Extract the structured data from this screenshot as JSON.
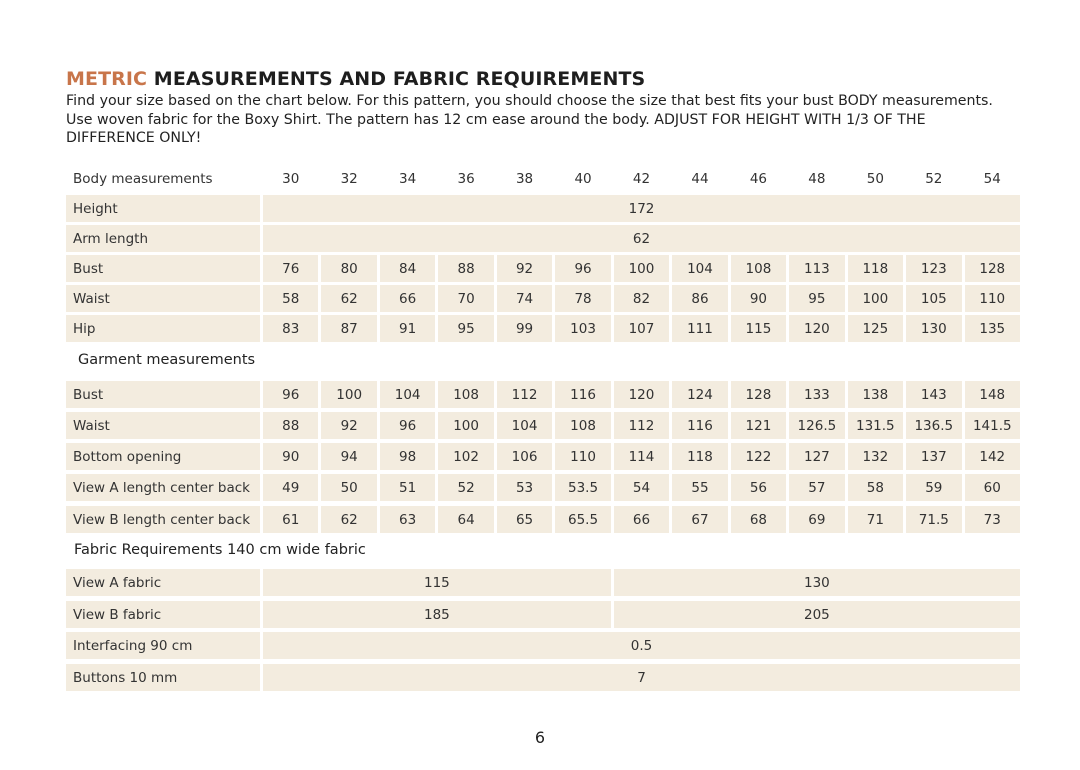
{
  "title": {
    "accent": "METRIC",
    "rest": " MEASUREMENTS AND FABRIC REQUIREMENTS"
  },
  "intro": "Find your size based on the chart below. For this pattern, you should choose the size that best fits your bust BODY measurements. Use woven fabric for the Boxy Shirt. The pattern has 12 cm ease around the body. ADJUST FOR HEIGHT WITH 1/3 OF THE DIFFERENCE ONLY!",
  "colors": {
    "accent": "#c8754a",
    "cell_bg": "#f3ecdf"
  },
  "body": {
    "heading": "Body measurements",
    "sizes": [
      "30",
      "32",
      "34",
      "36",
      "38",
      "40",
      "42",
      "44",
      "46",
      "48",
      "50",
      "52",
      "54"
    ],
    "rows": [
      {
        "label": "Height",
        "spans": [
          {
            "value": "172",
            "cols": 13
          }
        ]
      },
      {
        "label": "Arm length",
        "spans": [
          {
            "value": "62",
            "cols": 13
          }
        ]
      },
      {
        "label": "Bust",
        "values": [
          "76",
          "80",
          "84",
          "88",
          "92",
          "96",
          "100",
          "104",
          "108",
          "113",
          "118",
          "123",
          "128"
        ]
      },
      {
        "label": "Waist",
        "values": [
          "58",
          "62",
          "66",
          "70",
          "74",
          "78",
          "82",
          "86",
          "90",
          "95",
          "100",
          "105",
          "110"
        ]
      },
      {
        "label": "Hip",
        "values": [
          "83",
          "87",
          "91",
          "95",
          "99",
          "103",
          "107",
          "111",
          "115",
          "120",
          "125",
          "130",
          "135"
        ]
      }
    ]
  },
  "garment": {
    "heading": "Garment measurements",
    "rows": [
      {
        "label": "Bust",
        "values": [
          "96",
          "100",
          "104",
          "108",
          "112",
          "116",
          "120",
          "124",
          "128",
          "133",
          "138",
          "143",
          "148"
        ]
      },
      {
        "label": "Waist",
        "values": [
          "88",
          "92",
          "96",
          "100",
          "104",
          "108",
          "112",
          "116",
          "121",
          "126.5",
          "131.5",
          "136.5",
          "141.5"
        ]
      },
      {
        "label": "Bottom opening",
        "values": [
          "90",
          "94",
          "98",
          "102",
          "106",
          "110",
          "114",
          "118",
          "122",
          "127",
          "132",
          "137",
          "142"
        ]
      },
      {
        "label": "View A length center back",
        "values": [
          "49",
          "50",
          "51",
          "52",
          "53",
          "53.5",
          "54",
          "55",
          "56",
          "57",
          "58",
          "59",
          "60"
        ]
      },
      {
        "label": "View B length center back",
        "values": [
          "61",
          "62",
          "63",
          "64",
          "65",
          "65.5",
          "66",
          "67",
          "68",
          "69",
          "71",
          "71.5",
          "73"
        ]
      }
    ]
  },
  "fabric": {
    "heading": "Fabric Requirements 140 cm wide fabric",
    "rows": [
      {
        "label": "View A fabric",
        "spans": [
          {
            "value": "115",
            "cols": 6
          },
          {
            "value": "130",
            "cols": 7
          }
        ]
      },
      {
        "label": "View B fabric",
        "spans": [
          {
            "value": "185",
            "cols": 6
          },
          {
            "value": "205",
            "cols": 7
          }
        ]
      },
      {
        "label": "Interfacing 90 cm",
        "spans": [
          {
            "value": "0.5",
            "cols": 13
          }
        ]
      },
      {
        "label": " Buttons 10 mm",
        "spans": [
          {
            "value": "7",
            "cols": 13
          }
        ]
      }
    ]
  },
  "page_number": "6"
}
